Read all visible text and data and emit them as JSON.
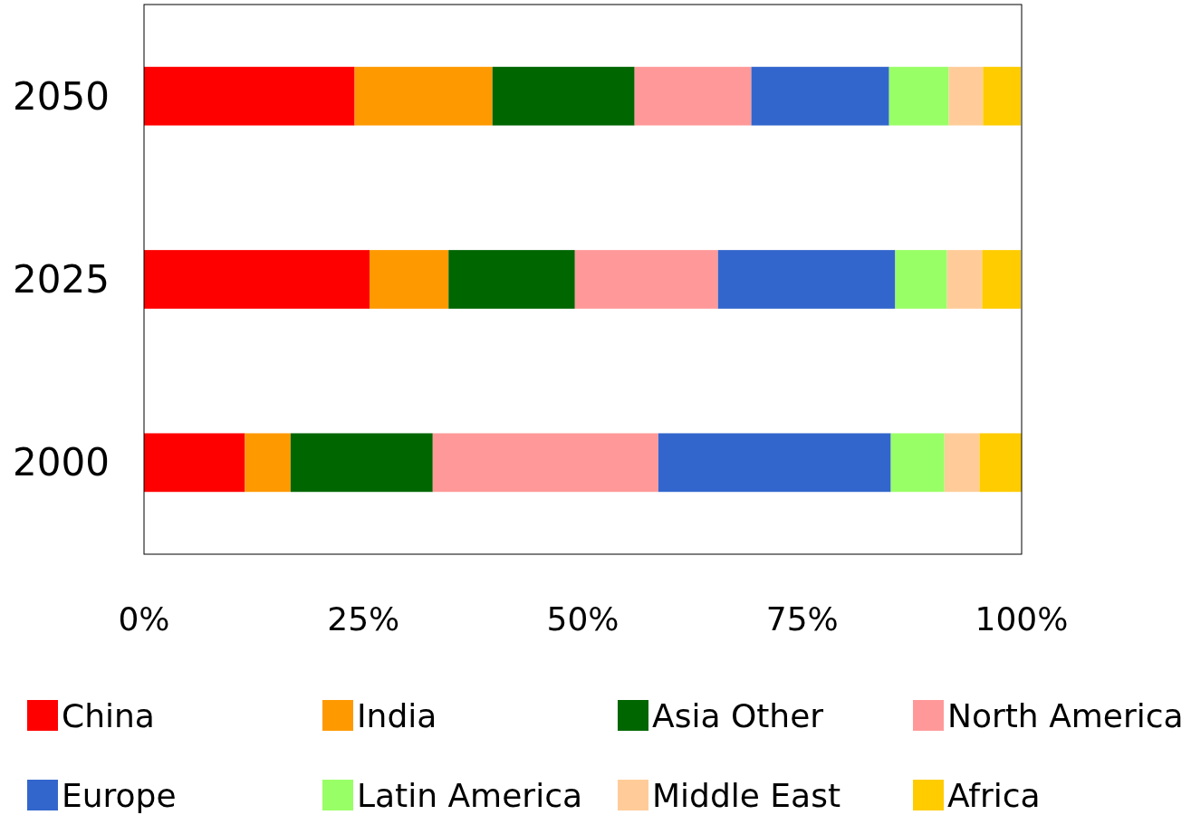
{
  "chart_data": {
    "type": "bar",
    "orientation": "horizontal",
    "stacked": true,
    "categories": [
      "2050",
      "2025",
      "2000"
    ],
    "series": [
      {
        "name": "China",
        "color": "#ff0000",
        "values": [
          24.0,
          25.7,
          11.5
        ]
      },
      {
        "name": "India",
        "color": "#ff9900",
        "values": [
          15.7,
          9.0,
          5.2
        ]
      },
      {
        "name": "Asia Other",
        "color": "#006600",
        "values": [
          16.2,
          14.4,
          16.2
        ]
      },
      {
        "name": "North America",
        "color": "#ff9999",
        "values": [
          13.3,
          16.3,
          25.7
        ]
      },
      {
        "name": "Europe",
        "color": "#3366cc",
        "values": [
          15.7,
          20.2,
          26.5
        ]
      },
      {
        "name": "Latin America",
        "color": "#99ff66",
        "values": [
          6.8,
          5.9,
          6.1
        ]
      },
      {
        "name": "Middle East",
        "color": "#ffcc99",
        "values": [
          3.9,
          4.0,
          4.0
        ]
      },
      {
        "name": "Africa",
        "color": "#ffcc00",
        "values": [
          4.3,
          4.4,
          4.8
        ]
      }
    ],
    "xlim": [
      0,
      100
    ],
    "xticks": [
      {
        "value": 0,
        "label": "0%"
      },
      {
        "value": 25,
        "label": "25%"
      },
      {
        "value": 50,
        "label": "50%"
      },
      {
        "value": 75,
        "label": "75%"
      },
      {
        "value": 100,
        "label": "100%"
      }
    ],
    "grid": false,
    "legend": "bottom"
  }
}
